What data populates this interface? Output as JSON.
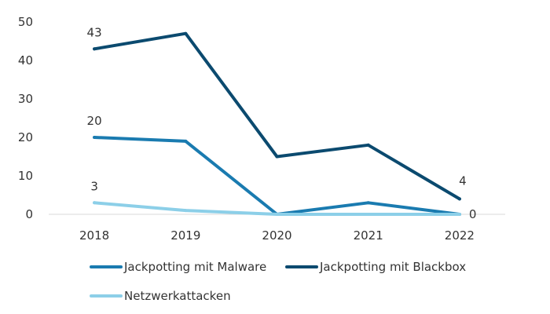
{
  "chart_data": {
    "type": "line",
    "title": "",
    "xlabel": "",
    "ylabel": "",
    "categories": [
      "2018",
      "2019",
      "2020",
      "2021",
      "2022"
    ],
    "ylim": [
      0,
      50
    ],
    "yticks": [
      "0",
      "10",
      "20",
      "30",
      "40",
      "50"
    ],
    "grid": false,
    "legend_position": "bottom",
    "series": [
      {
        "name": "Jackpotting mit Malware",
        "values": [
          20,
          19,
          0,
          3,
          0
        ],
        "color": "#1a7bb0",
        "labels": [
          "20",
          "",
          "",
          "",
          ""
        ]
      },
      {
        "name": "Jackpotting mit Blackbox",
        "values": [
          43,
          47,
          15,
          18,
          4
        ],
        "color": "#0b4a6f",
        "labels": [
          "43",
          "",
          "",
          "",
          "4"
        ]
      },
      {
        "name": "Netzwerkattacken",
        "values": [
          3,
          1,
          0,
          0,
          0
        ],
        "color": "#8ccfe8",
        "labels": [
          "3",
          "",
          "",
          "",
          "0"
        ]
      }
    ]
  }
}
